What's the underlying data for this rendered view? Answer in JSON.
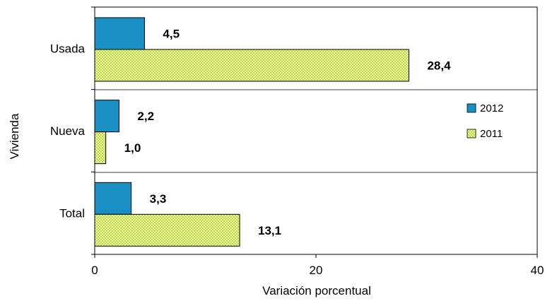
{
  "chart_data": {
    "type": "bar",
    "orientation": "horizontal",
    "categories": [
      "Usada",
      "Nueva",
      "Total"
    ],
    "series": [
      {
        "name": "2012",
        "values": [
          4.5,
          2.2,
          3.3
        ],
        "labels": [
          "4,5",
          "2,2",
          "3,3"
        ],
        "color": "#1a8fc4"
      },
      {
        "name": "2011",
        "values": [
          28.4,
          1.0,
          13.1
        ],
        "labels": [
          "28,4",
          "1,0",
          "13,1"
        ],
        "color": "#d9ec6a"
      }
    ],
    "xlabel": "Variación porcentual",
    "ylabel": "Vivienda",
    "xlim": [
      0,
      40
    ],
    "xticks": [
      "0",
      "20",
      "40"
    ],
    "legend_position": "right",
    "grid": false
  }
}
